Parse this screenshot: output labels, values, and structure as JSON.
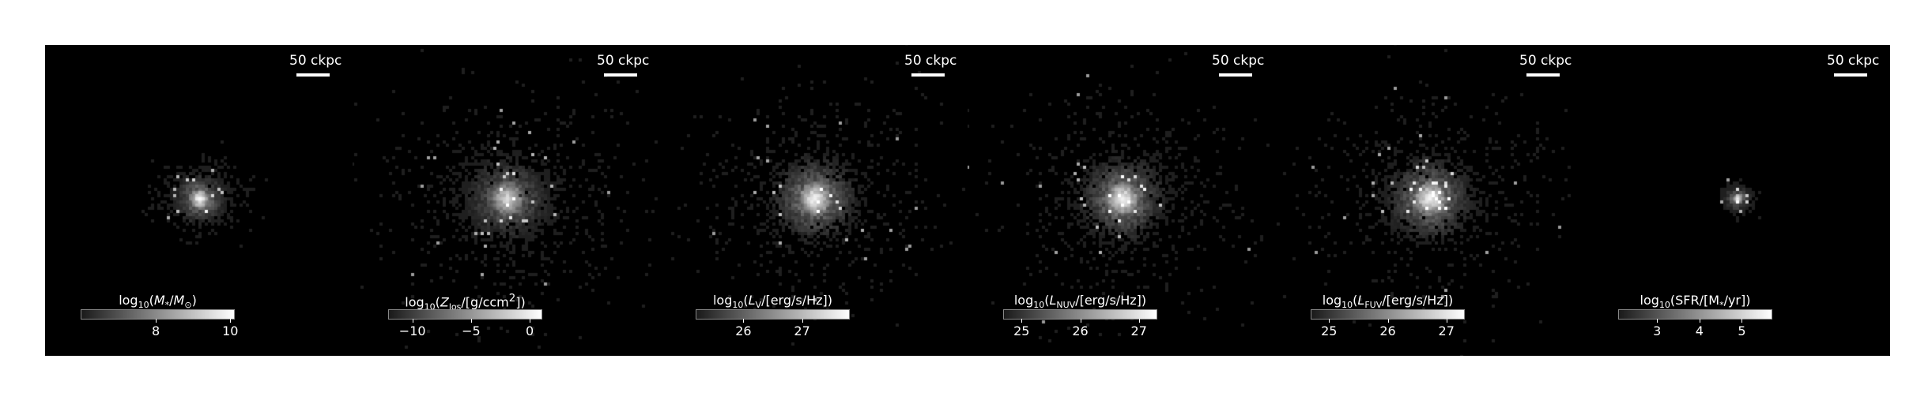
{
  "figure": {
    "panels": [
      {
        "id": "stellar-mass",
        "scalebar": "50 ckpc",
        "colorbar": {
          "prefix": "log",
          "prefix_sub": "10",
          "label_html": "(<i>M</i><sub>*</sub>/<i>M</i><sub>⊙</sub>)",
          "ticks": [
            "8",
            "10"
          ],
          "range": [
            6.0,
            10.1
          ],
          "tick_values": [
            8,
            10
          ]
        },
        "structure": {
          "spread": 14,
          "extent": 0.55,
          "density": 0.55,
          "peak": 1.0
        }
      },
      {
        "id": "metallicity",
        "scalebar": "50 ckpc",
        "colorbar": {
          "prefix": "log",
          "prefix_sub": "10",
          "label_html": "(<i>Z</i><sub>los</sub>/[g/ccm<sup>2</sup>])",
          "ticks": [
            "−10",
            "−5",
            "0"
          ],
          "range": [
            -12.0,
            1.0
          ],
          "tick_values": [
            -10,
            -5,
            0
          ]
        },
        "structure": {
          "spread": 26,
          "extent": 1.0,
          "density": 1.0,
          "peak": 0.75
        }
      },
      {
        "id": "v-band-luminosity",
        "scalebar": "50 ckpc",
        "colorbar": {
          "prefix": "log",
          "prefix_sub": "10",
          "label_html": "(<i>L</i><sub>V</sub>/[erg/s/Hz])",
          "ticks": [
            "26",
            "27"
          ],
          "range": [
            25.2,
            27.8
          ],
          "tick_values": [
            26,
            27
          ]
        },
        "structure": {
          "spread": 24,
          "extent": 1.0,
          "density": 1.0,
          "peak": 0.95
        }
      },
      {
        "id": "nuv-luminosity",
        "scalebar": "50 ckpc",
        "colorbar": {
          "prefix": "log",
          "prefix_sub": "10",
          "label_html": "(<i>L</i><sub>NUV</sub>/[erg/s/Hz])",
          "ticks": [
            "25",
            "26",
            "27"
          ],
          "range": [
            24.7,
            27.3
          ],
          "tick_values": [
            25,
            26,
            27
          ]
        },
        "structure": {
          "spread": 24,
          "extent": 1.0,
          "density": 1.0,
          "peak": 0.95
        }
      },
      {
        "id": "fuv-luminosity",
        "scalebar": "50 ckpc",
        "colorbar": {
          "prefix": "log",
          "prefix_sub": "10",
          "label_html": "(<i>L</i><sub>FUV</sub>/[erg/s/Hz])",
          "ticks": [
            "25",
            "26",
            "27"
          ],
          "range": [
            24.7,
            27.3
          ],
          "tick_values": [
            25,
            26,
            27
          ]
        },
        "structure": {
          "spread": 24,
          "extent": 1.0,
          "density": 1.0,
          "peak": 0.95
        }
      },
      {
        "id": "star-formation-rate",
        "scalebar": "50 ckpc",
        "colorbar": {
          "prefix": "log",
          "prefix_sub": "10",
          "label_html": "(SFR/[M<sub>*</sub>/yr])",
          "ticks": [
            "3",
            "4",
            "5"
          ],
          "range": [
            2.1,
            5.7
          ],
          "tick_values": [
            3,
            4,
            5
          ]
        },
        "structure": {
          "spread": 7,
          "extent": 0.3,
          "density": 0.4,
          "peak": 1.0
        }
      }
    ]
  }
}
